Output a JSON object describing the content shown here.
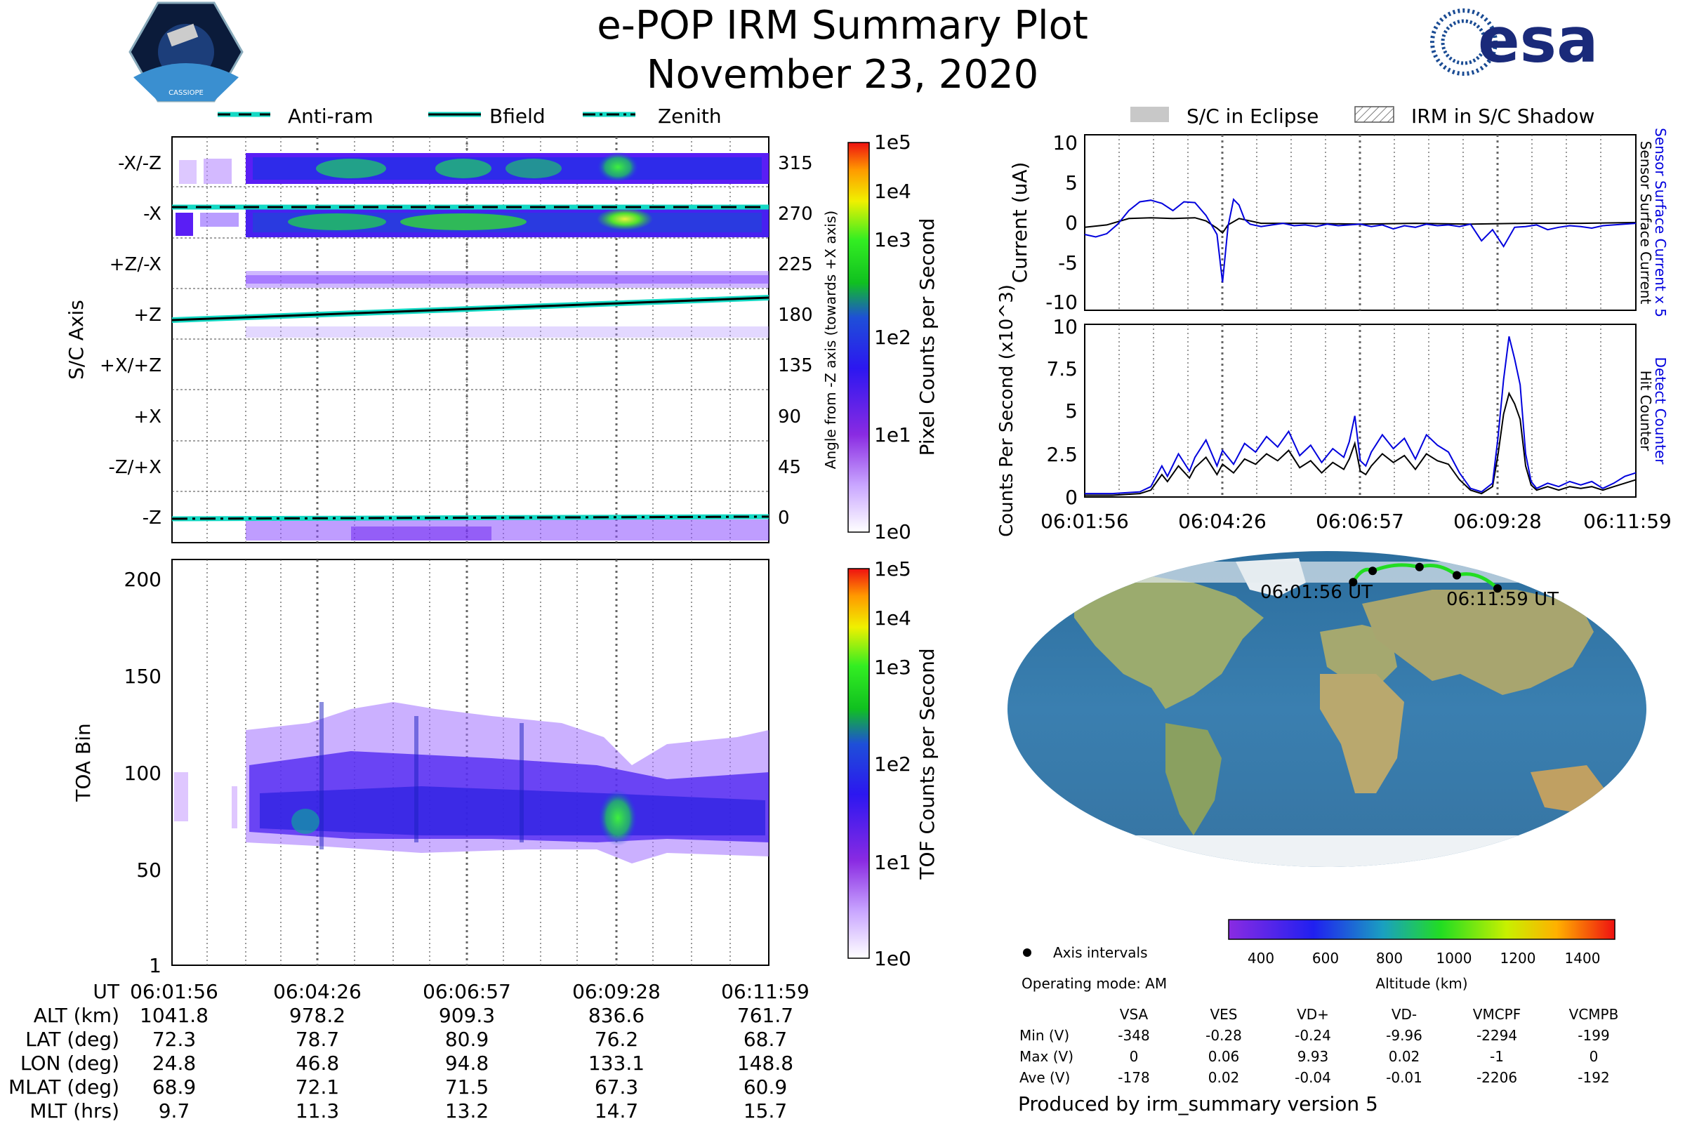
{
  "header": {
    "title": "e-POP IRM Summary Plot",
    "date": "November 23, 2020",
    "cassiope_logo_text": "CASSIOPE",
    "esa_logo_text": "esa"
  },
  "legend_top_left": {
    "items": [
      {
        "label": "Anti-ram",
        "style": "dashed"
      },
      {
        "label": "Bfield",
        "style": "solid"
      },
      {
        "label": "Zenith",
        "style": "dashdot"
      }
    ]
  },
  "legend_top_right": {
    "items": [
      {
        "label": "S/C in Eclipse",
        "style": "gray-fill"
      },
      {
        "label": "IRM in S/C Shadow",
        "style": "hatch"
      }
    ]
  },
  "time_ticks": [
    "06:01:56",
    "06:04:26",
    "06:06:57",
    "06:09:28",
    "06:11:59"
  ],
  "colors": {
    "curve_blue": "#0000dd",
    "curve_black": "#000000",
    "line_teal": "#14d9c4",
    "track_green": "#22dd22"
  },
  "chart_data": [
    {
      "id": "sc_axis",
      "type": "heatmap",
      "ylabel": "S/C Axis",
      "y2label": "Angle from -Z axis (towards +X axis)",
      "y_categories": [
        "-X/-Z",
        "-X",
        "+Z/-X",
        "+Z",
        "+X/+Z",
        "+X",
        "-Z/+X",
        "-Z"
      ],
      "y2_ticks": [
        315,
        270,
        225,
        180,
        135,
        90,
        45,
        0
      ],
      "colorbar_label": "Pixel Counts per Second",
      "colorbar_ticks": [
        "1e5",
        "1e4",
        "1e3",
        "1e2",
        "1e1",
        "1e0"
      ],
      "lines": [
        {
          "name": "Anti-ram",
          "angle_start": 270,
          "angle_end": 270
        },
        {
          "name": "Bfield",
          "angle_start": 174,
          "angle_end": 196
        },
        {
          "name": "Zenith",
          "angle_start": 0,
          "angle_end": 1
        }
      ]
    },
    {
      "id": "toa",
      "type": "heatmap",
      "ylabel": "TOA Bin",
      "yticks": [
        1,
        50,
        100,
        150,
        200
      ],
      "ylim": [
        1,
        210
      ],
      "colorbar_label": "TOF Counts per Second",
      "colorbar_ticks": [
        "1e5",
        "1e4",
        "1e3",
        "1e2",
        "1e1",
        "1e0"
      ]
    },
    {
      "id": "current",
      "type": "line",
      "ylabel": "Current (uA)",
      "yticks": [
        10,
        5,
        0,
        -5,
        -10
      ],
      "ylim": [
        -11,
        11
      ],
      "right_labels": [
        "Sensor Surface Current x 5",
        "Sensor Surface Current"
      ],
      "series": [
        {
          "name": "Sensor Surface Current x 5",
          "color": "#0000dd",
          "x": [
            0,
            0.02,
            0.04,
            0.06,
            0.08,
            0.1,
            0.12,
            0.14,
            0.16,
            0.18,
            0.2,
            0.22,
            0.24,
            0.25,
            0.26,
            0.27,
            0.28,
            0.29,
            0.3,
            0.32,
            0.34,
            0.36,
            0.38,
            0.4,
            0.42,
            0.44,
            0.46,
            0.48,
            0.5,
            0.52,
            0.54,
            0.56,
            0.58,
            0.6,
            0.62,
            0.64,
            0.66,
            0.68,
            0.7,
            0.72,
            0.74,
            0.76,
            0.78,
            0.8,
            0.82,
            0.84,
            0.86,
            0.88,
            0.9,
            0.92,
            0.94,
            0.96,
            0.98,
            1
          ],
          "y": [
            -1.5,
            -1.8,
            -1.4,
            -0.2,
            1.5,
            2.6,
            2.8,
            2.4,
            1.5,
            2.6,
            2.5,
            0.9,
            -1.5,
            -7.5,
            -0.5,
            2.9,
            2.2,
            0.4,
            -0.2,
            -0.5,
            -0.3,
            -0.1,
            -0.4,
            -0.3,
            -0.5,
            -0.2,
            -0.4,
            -0.3,
            -0.2,
            -0.5,
            -0.3,
            -0.8,
            -0.4,
            -0.6,
            -0.2,
            -0.4,
            -0.3,
            -0.5,
            -0.2,
            -2.3,
            -0.9,
            -3.0,
            -0.6,
            -0.5,
            -0.3,
            -0.9,
            -0.6,
            -0.4,
            -0.5,
            -0.7,
            -0.4,
            -0.3,
            -0.2,
            -0.1
          ]
        },
        {
          "name": "Sensor Surface Current",
          "color": "#000000",
          "x": [
            0,
            0.04,
            0.08,
            0.12,
            0.16,
            0.2,
            0.22,
            0.24,
            0.25,
            0.26,
            0.28,
            0.32,
            0.4,
            0.5,
            0.6,
            0.7,
            0.8,
            0.9,
            1
          ],
          "y": [
            -0.6,
            -0.3,
            0.5,
            0.6,
            0.5,
            0.6,
            0.2,
            -0.7,
            -1.3,
            -0.3,
            0.5,
            -0.1,
            -0.1,
            -0.2,
            -0.1,
            -0.2,
            -0.1,
            -0.1,
            0.0
          ]
        }
      ]
    },
    {
      "id": "counts",
      "type": "line",
      "ylabel": "Counts Per Second (x10^3)",
      "yticks": [
        10.0,
        7.5,
        5.0,
        2.5,
        0.0
      ],
      "ylim": [
        0,
        10
      ],
      "right_labels": [
        "Detect Counter",
        "Hit Counter"
      ],
      "series": [
        {
          "name": "Detect Counter",
          "color": "#0000dd",
          "x": [
            0,
            0.05,
            0.1,
            0.12,
            0.14,
            0.15,
            0.17,
            0.19,
            0.2,
            0.22,
            0.24,
            0.25,
            0.27,
            0.29,
            0.31,
            0.33,
            0.35,
            0.37,
            0.39,
            0.41,
            0.43,
            0.45,
            0.47,
            0.48,
            0.49,
            0.5,
            0.51,
            0.52,
            0.54,
            0.56,
            0.58,
            0.6,
            0.62,
            0.64,
            0.66,
            0.68,
            0.7,
            0.72,
            0.74,
            0.75,
            0.76,
            0.77,
            0.78,
            0.79,
            0.8,
            0.81,
            0.82,
            0.84,
            0.86,
            0.88,
            0.9,
            0.92,
            0.94,
            0.96,
            0.98,
            1
          ],
          "y": [
            0.2,
            0.2,
            0.3,
            0.6,
            1.8,
            1.2,
            2.5,
            1.5,
            2.3,
            3.3,
            1.8,
            2.7,
            1.9,
            3.1,
            2.6,
            3.5,
            2.9,
            3.8,
            2.4,
            3.0,
            2.0,
            2.8,
            2.3,
            3.2,
            4.7,
            2.1,
            1.8,
            2.6,
            3.6,
            2.8,
            3.4,
            2.2,
            3.6,
            3.0,
            2.6,
            1.4,
            0.5,
            0.3,
            0.8,
            3.5,
            6.8,
            9.3,
            8.0,
            6.5,
            2.5,
            0.9,
            0.5,
            0.8,
            0.6,
            0.9,
            0.7,
            0.9,
            0.5,
            0.8,
            1.2,
            1.4
          ]
        },
        {
          "name": "Hit Counter",
          "color": "#000000",
          "x": [
            0,
            0.05,
            0.1,
            0.12,
            0.14,
            0.15,
            0.17,
            0.19,
            0.2,
            0.22,
            0.24,
            0.25,
            0.27,
            0.29,
            0.31,
            0.33,
            0.35,
            0.37,
            0.39,
            0.41,
            0.43,
            0.45,
            0.47,
            0.48,
            0.49,
            0.5,
            0.51,
            0.52,
            0.54,
            0.56,
            0.58,
            0.6,
            0.62,
            0.64,
            0.66,
            0.68,
            0.7,
            0.72,
            0.74,
            0.75,
            0.76,
            0.77,
            0.78,
            0.79,
            0.8,
            0.81,
            0.82,
            0.84,
            0.86,
            0.88,
            0.9,
            0.92,
            0.94,
            0.96,
            0.98,
            1
          ],
          "y": [
            0.1,
            0.1,
            0.2,
            0.4,
            1.3,
            0.9,
            1.8,
            1.1,
            1.7,
            2.3,
            1.3,
            1.9,
            1.4,
            2.2,
            1.9,
            2.5,
            2.1,
            2.7,
            1.7,
            2.1,
            1.4,
            2.0,
            1.6,
            2.2,
            3.1,
            1.5,
            1.3,
            1.8,
            2.5,
            2.0,
            2.4,
            1.6,
            2.5,
            2.1,
            1.9,
            1.0,
            0.4,
            0.2,
            0.6,
            2.5,
            4.8,
            6.0,
            5.4,
            4.5,
            1.8,
            0.7,
            0.4,
            0.6,
            0.4,
            0.6,
            0.5,
            0.6,
            0.4,
            0.6,
            0.8,
            1.0
          ]
        }
      ]
    },
    {
      "id": "orbit_map",
      "type": "scatter",
      "start_label": "06:01:56 UT",
      "end_label": "06:11:59 UT",
      "points_lon": [
        24.8,
        46.8,
        94.8,
        133.1,
        148.8
      ],
      "points_lat": [
        72.3,
        78.7,
        80.9,
        76.2,
        68.7
      ],
      "colorbar_label": "Altitude (km)",
      "colorbar_ticks": [
        400,
        600,
        800,
        1000,
        1200,
        1400
      ],
      "colorbar_range": [
        300,
        1500
      ]
    }
  ],
  "orbit_table": {
    "labels": [
      "UT",
      "ALT (km)",
      "LAT (deg)",
      "LON (deg)",
      "MLAT (deg)",
      "MLT (hrs)"
    ],
    "columns": [
      [
        "06:01:56",
        "1041.8",
        "72.3",
        "24.8",
        "68.9",
        "9.7"
      ],
      [
        "06:04:26",
        "978.2",
        "78.7",
        "46.8",
        "72.1",
        "11.3"
      ],
      [
        "06:06:57",
        "909.3",
        "80.9",
        "94.8",
        "71.5",
        "13.2"
      ],
      [
        "06:09:28",
        "836.6",
        "76.2",
        "133.1",
        "67.3",
        "14.7"
      ],
      [
        "06:11:59",
        "761.7",
        "68.7",
        "148.8",
        "60.9",
        "15.7"
      ]
    ]
  },
  "axis_intervals_label": "Axis intervals",
  "operating_mode": "Operating mode: AM",
  "voltage_table": {
    "headers": [
      "VSA",
      "VES",
      "VD+",
      "VD-",
      "VMCPF",
      "VCMPB"
    ],
    "rows": [
      {
        "label": "Min (V)",
        "values": [
          "-348",
          "-0.28",
          "-0.24",
          "-9.96",
          "-2294",
          "-199"
        ]
      },
      {
        "label": "Max (V)",
        "values": [
          "0",
          "0.06",
          "9.93",
          "0.02",
          "-1",
          "0"
        ]
      },
      {
        "label": "Ave (V)",
        "values": [
          "-178",
          "0.02",
          "-0.04",
          "-0.01",
          "-2206",
          "-192"
        ]
      }
    ]
  },
  "footer": "Produced by irm_summary version 5"
}
